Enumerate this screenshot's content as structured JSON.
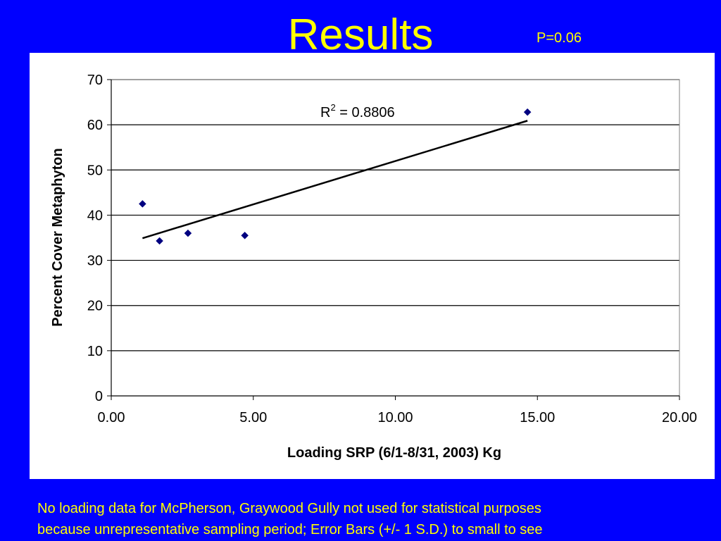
{
  "slide": {
    "title": "Results",
    "p_value": "P=0.06",
    "footnote_line1": "No loading data for McPherson, Graywood Gully not used for statistical purposes",
    "footnote_line2": "because unrepresentative sampling period; Error Bars (+/- 1 S.D.) to small to see"
  },
  "colors": {
    "background": "#0000ff",
    "text_accent": "#ffff00",
    "marker": "#000080",
    "trendline": "#000000"
  },
  "chart_data": {
    "type": "scatter",
    "title": "",
    "xlabel": "Loading SRP (6/1-8/31, 2003) Kg",
    "ylabel": "Percent Cover Metaphyton",
    "xlim": [
      0,
      20
    ],
    "ylim": [
      0,
      70
    ],
    "x_ticks": [
      "0.00",
      "5.00",
      "10.00",
      "15.00",
      "20.00"
    ],
    "y_ticks": [
      "0",
      "10",
      "20",
      "30",
      "40",
      "50",
      "60",
      "70"
    ],
    "grid": "horizontal",
    "marker": "diamond",
    "points": [
      {
        "x": 1.1,
        "y": 42.5
      },
      {
        "x": 1.7,
        "y": 34.3
      },
      {
        "x": 2.7,
        "y": 36.0
      },
      {
        "x": 4.7,
        "y": 35.5
      },
      {
        "x": 14.65,
        "y": 62.8
      }
    ],
    "trendline": {
      "type": "linear",
      "x_start": 1.1,
      "y_start": 34.9,
      "x_end": 14.65,
      "y_end": 60.9,
      "r2_base": "R",
      "r2_sup": "2",
      "r2_value": " = 0.8806"
    }
  }
}
